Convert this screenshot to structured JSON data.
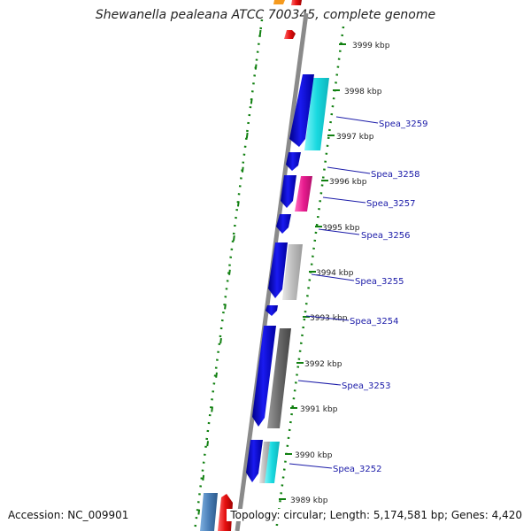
{
  "title": "Shewanella pealeana ATCC 700345, complete genome",
  "accession": "Accession: NC_009901",
  "summary": "Topology: circular; Length: 5,174,581 bp; Genes: 4,420",
  "kbp_labels": [
    "3999 kbp",
    "3998 kbp",
    "3997 kbp",
    "3996 kbp",
    "3995 kbp",
    "3994 kbp",
    "3993 kbp",
    "3992 kbp",
    "3991 kbp",
    "3990 kbp",
    "3989 kbp"
  ],
  "genes": [
    "Spea_3259",
    "Spea_3258",
    "Spea_3257",
    "Spea_3256",
    "Spea_3255",
    "Spea_3254",
    "Spea_3253",
    "Spea_3252"
  ],
  "colors": {
    "cds": "#1010e0",
    "cog_cyan": "#19d9e0",
    "cog_magenta": "#e81c8f",
    "cog_lightgray": "#bdbdbd",
    "cog_darkgray": "#6a6a6a",
    "cog_steelblue": "#4a7fb8",
    "rna_red": "#e61010",
    "orange": "#f59a1e",
    "backbone": "#8a8a8a",
    "dotted_ring": "#118011",
    "label_line": "#1a1aa8"
  }
}
